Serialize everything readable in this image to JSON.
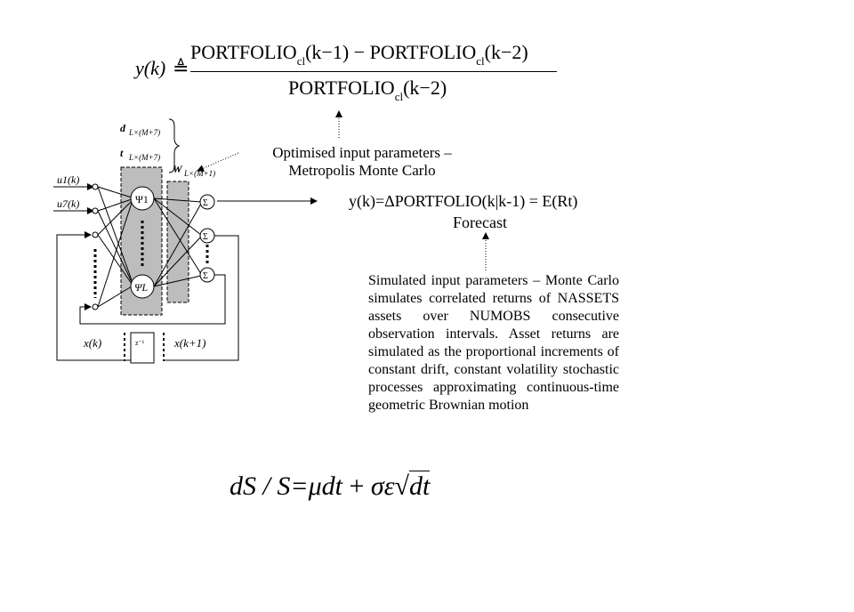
{
  "formula_top": {
    "lhs": "y(k)",
    "defeq": "≜",
    "num_a": "PORTFOLIO",
    "num_a_sub": "cl",
    "num_a_arg": "(k−1)",
    "minus": " − ",
    "num_b": "PORTFOLIO",
    "num_b_sub": "cl",
    "num_b_arg": "(k−2)",
    "den": "PORTFOLIO",
    "den_sub": "cl",
    "den_arg": "(k−2)"
  },
  "annotations": {
    "optimised_line1": "Optimised input parameters –",
    "optimised_line2": "Metropolis Monte Carlo",
    "forecast_eq": "y(k)=ΔPORTFOLIO(k|k-1) =  E(Rt)",
    "forecast_label": "Forecast",
    "simulated_text": "Simulated input parameters – Monte Carlo simulates correlated returns of NASSETS assets over NUMOBS consecutive observation intervals. Asset returns are simulated as the proportional increments of constant drift, constant volatility stochastic processes approximating continuous-time geometric Brownian motion"
  },
  "network": {
    "d_label": "d",
    "d_sub": "L×(M+7)",
    "t_label": "t",
    "t_sub": "L×(M+7)",
    "w_label": "W",
    "w_sub": "L×(M+1)",
    "u1": "u1(k)",
    "u7": "u7(k)",
    "psi1": "Ψ1",
    "psiL": "ΨL",
    "sigma": "Σ",
    "xk": "x(k)",
    "delay": "z⁻¹",
    "xk1": "x(k+1)"
  },
  "sde": {
    "text": "dS / S=μdt + σε√dt",
    "lhs": "dS / S=",
    "mu_term": "μdt",
    "plus": " + ",
    "sigma_term": "σε",
    "sqrt_arg": "dt"
  }
}
